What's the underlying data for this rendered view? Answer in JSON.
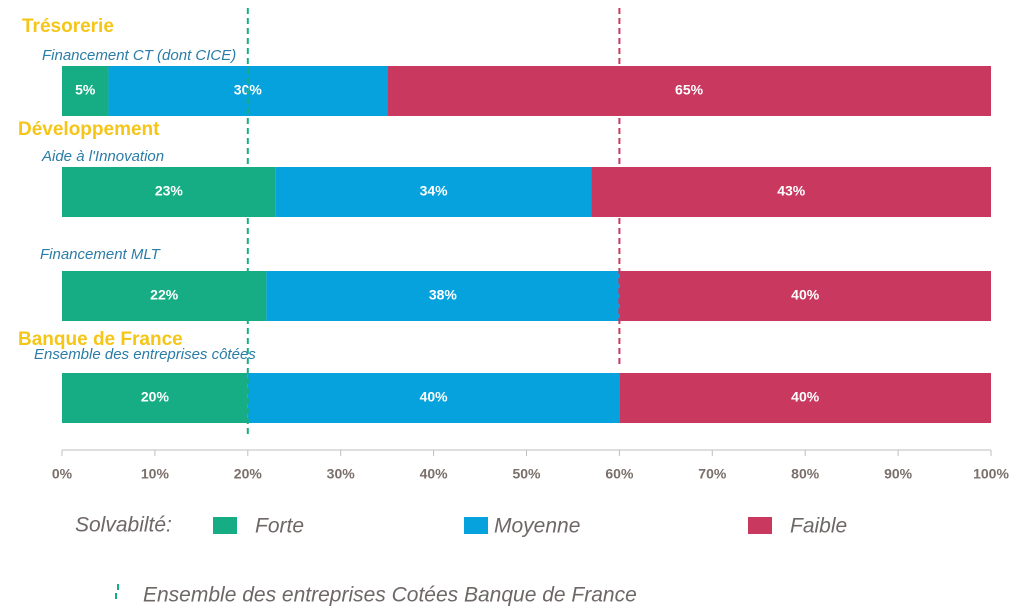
{
  "chart_data": {
    "type": "stacked_barh",
    "categories": [
      "Financement CT (dont CICE)",
      "Aide à l'Innovation",
      "Financement MLT",
      "Ensemble des entreprises côtées"
    ],
    "group_labels": [
      "Trésorerie",
      "Développement",
      null,
      "Banque de France"
    ],
    "series": [
      {
        "name": "Forte",
        "color": "#17ad84",
        "values": [
          5,
          23,
          22,
          20
        ],
        "value_labels": [
          "5%",
          "23%",
          "22%",
          "20%"
        ]
      },
      {
        "name": "Moyenne",
        "color": "#05a2dd",
        "values": [
          30,
          34,
          38,
          40
        ],
        "value_labels": [
          "30%",
          "34%",
          "38%",
          "40%"
        ]
      },
      {
        "name": "Faible",
        "color": "#c8385f",
        "values": [
          65,
          43,
          40,
          40
        ],
        "value_labels": [
          "65%",
          "43%",
          "40%",
          "40%"
        ]
      }
    ],
    "xlim": [
      0,
      100
    ],
    "xticks": [
      {
        "value": 0,
        "label": "0%"
      },
      {
        "value": 10,
        "label": "10%"
      },
      {
        "value": 20,
        "label": "20%"
      },
      {
        "value": 30,
        "label": "30%"
      },
      {
        "value": 40,
        "label": "40%"
      },
      {
        "value": 50,
        "label": "50%"
      },
      {
        "value": 60,
        "label": "60%"
      },
      {
        "value": 70,
        "label": "70%"
      },
      {
        "value": 80,
        "label": "80%"
      },
      {
        "value": 90,
        "label": "90%"
      },
      {
        "value": 100,
        "label": "100%"
      }
    ],
    "legend_title": "Solvabilté:",
    "reference_lines": [
      {
        "value": 20,
        "color": "#17ad84"
      },
      {
        "value": 60,
        "color": "#c8385f"
      }
    ],
    "reference_note": "Ensemble des entreprises Cotées Banque de France"
  }
}
